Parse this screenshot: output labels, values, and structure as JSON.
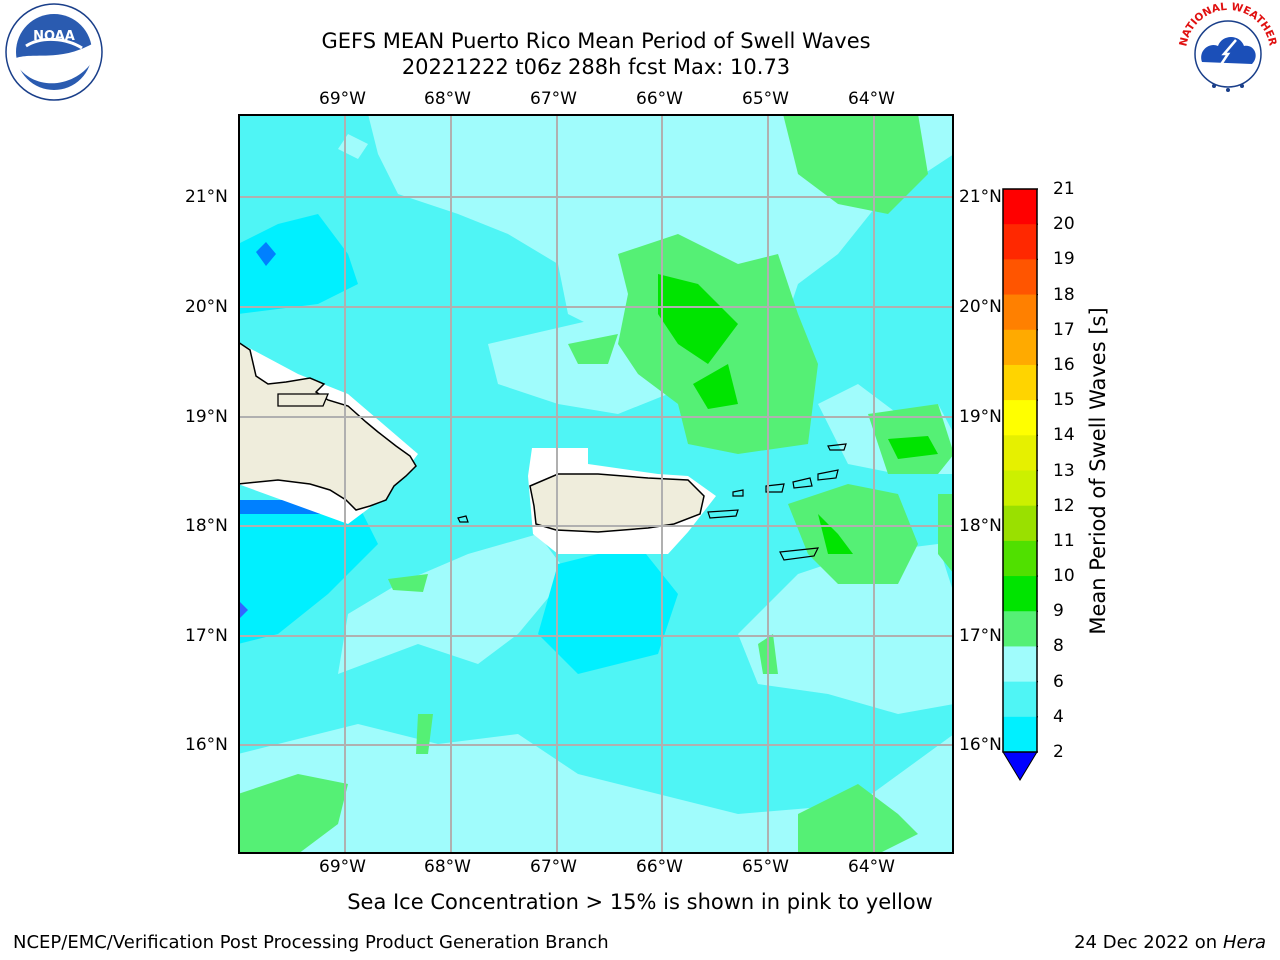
{
  "header": {
    "title_line1": "GEFS MEAN Puerto Rico Mean Period of Swell Waves",
    "title_line2": "20221222 t06z 288h fcst   Max: 10.73"
  },
  "logos": {
    "noaa_text": "NOAA",
    "noaa_ring_text": "NATIONAL OCEANIC AND ATMOSPHERIC ADMINISTRATION · U.S. DEPARTMENT OF COMMERCE",
    "nws_ring_text": "NATIONAL WEATHER SERVICE"
  },
  "map": {
    "lon_ticks": [
      "69°W",
      "68°W",
      "67°W",
      "66°W",
      "65°W",
      "64°W"
    ],
    "lat_ticks": [
      "21°N",
      "20°N",
      "19°N",
      "18°N",
      "17°N",
      "16°N"
    ],
    "lon_values": [
      -69,
      -68,
      -67,
      -66,
      -65,
      -64
    ],
    "lat_values": [
      21,
      20,
      19,
      18,
      17,
      16
    ],
    "extent": {
      "lon_min": -70,
      "lon_max": -63.3,
      "lat_min": 15,
      "lat_max": 21.75
    },
    "land_color": "#efeddc",
    "ocean_colors": {
      "p6_8": "#4ff5f5",
      "p8_9": "#a0fcfc",
      "p9_10": "#55f075",
      "p10_11": "#00e400",
      "p4_6": "#00f0ff",
      "p2_4": "#0080ff"
    }
  },
  "colorbar": {
    "title": "Mean Period of Swell Waves [s]",
    "labels": [
      "21",
      "20",
      "19",
      "18",
      "17",
      "16",
      "15",
      "14",
      "13",
      "12",
      "11",
      "10",
      "9",
      "8",
      "6",
      "4",
      "2"
    ],
    "colors": [
      "#ff0000",
      "#ff2800",
      "#ff5500",
      "#ff8000",
      "#ffaa00",
      "#ffd400",
      "#ffff00",
      "#e6f000",
      "#ccf000",
      "#9ae000",
      "#50e000",
      "#00e400",
      "#55f075",
      "#a0fcfc",
      "#4ff5f5",
      "#00f0ff",
      "#0080ff"
    ],
    "extend_color": "#0000ff"
  },
  "footer": {
    "caption": "Sea Ice Concentration > 15% is shown in pink to yellow",
    "left": "NCEP/EMC/Verification Post Processing Product Generation Branch",
    "date": "24 Dec 2022 on",
    "host": "Hera"
  }
}
